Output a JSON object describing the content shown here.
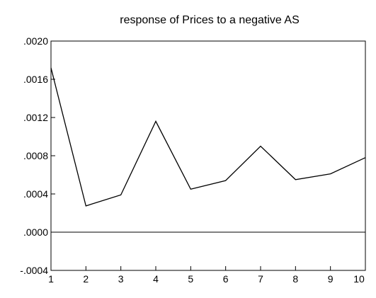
{
  "chart_data": {
    "type": "line",
    "title": "response of Prices to a negative AS",
    "xlabel": "",
    "ylabel": "",
    "x": [
      1,
      2,
      3,
      4,
      5,
      6,
      7,
      8,
      9,
      10
    ],
    "series": [
      {
        "values": [
          0.00172,
          0.000275,
          0.00039,
          0.00116,
          0.00045,
          0.00054,
          0.0009,
          0.00055,
          0.00061,
          0.00078
        ]
      }
    ],
    "xlim": [
      1,
      10
    ],
    "ylim": [
      -0.0004,
      0.002
    ],
    "x_ticks": [
      1,
      2,
      3,
      4,
      5,
      6,
      7,
      8,
      9,
      10
    ],
    "x_tick_labels": [
      "1",
      "2",
      "3",
      "4",
      "5",
      "6",
      "7",
      "8",
      "9",
      "10"
    ],
    "y_ticks": [
      -0.0004,
      0.0,
      0.0004,
      0.0008,
      0.0012,
      0.0016,
      0.002
    ],
    "y_tick_labels": [
      "-.0004",
      ".0000",
      ".0004",
      ".0008",
      ".0012",
      ".0016",
      ".0020"
    ],
    "zero_line": true,
    "grid": false,
    "legend": "none",
    "colors": {
      "line": "#000000",
      "axis": "#000000",
      "background": "#ffffff"
    }
  }
}
